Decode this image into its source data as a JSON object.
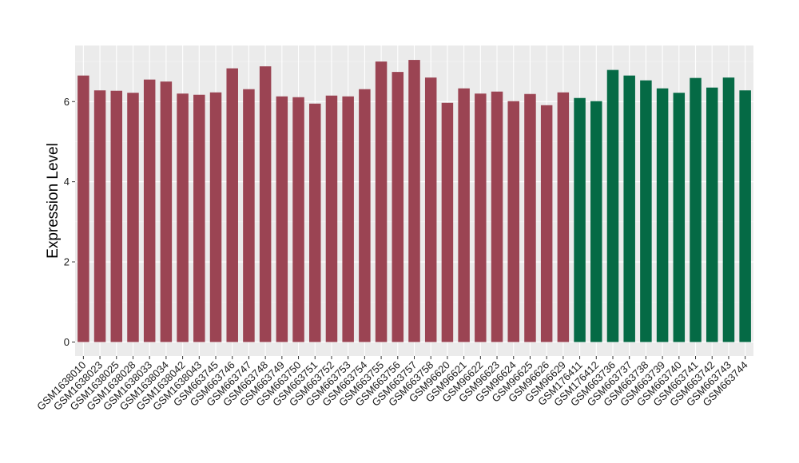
{
  "chart_data": {
    "type": "bar",
    "ylabel": "Expression Level",
    "xlabel": "",
    "ylim": [
      -0.35,
      7.4
    ],
    "yticks": [
      0,
      2,
      4,
      6
    ],
    "grid": true,
    "legend": "none",
    "categories": [
      "GSM1638010",
      "GSM1638023",
      "GSM1638025",
      "GSM1638028",
      "GSM1638033",
      "GSM1638034",
      "GSM1638042",
      "GSM1638043",
      "GSM663745",
      "GSM663746",
      "GSM663747",
      "GSM663748",
      "GSM663749",
      "GSM663750",
      "GSM663751",
      "GSM663752",
      "GSM663753",
      "GSM663754",
      "GSM663755",
      "GSM663756",
      "GSM663757",
      "GSM663758",
      "GSM96620",
      "GSM96621",
      "GSM96622",
      "GSM96623",
      "GSM96624",
      "GSM96625",
      "GSM96626",
      "GSM96629",
      "GSM176411",
      "GSM176412",
      "GSM663736",
      "GSM663737",
      "GSM663738",
      "GSM663739",
      "GSM663740",
      "GSM663741",
      "GSM663742",
      "GSM663743",
      "GSM663744"
    ],
    "values": [
      6.65,
      6.28,
      6.27,
      6.22,
      6.55,
      6.5,
      6.2,
      6.17,
      6.23,
      6.83,
      6.31,
      6.88,
      6.13,
      6.11,
      5.95,
      6.15,
      6.13,
      6.31,
      7.0,
      6.74,
      7.04,
      6.6,
      5.97,
      6.33,
      6.2,
      6.25,
      6.01,
      6.19,
      5.91,
      6.23,
      6.09,
      6.01,
      6.79,
      6.65,
      6.53,
      6.33,
      6.22,
      6.59,
      6.35,
      6.6,
      6.28
    ],
    "groups": [
      0,
      0,
      0,
      0,
      0,
      0,
      0,
      0,
      0,
      0,
      0,
      0,
      0,
      0,
      0,
      0,
      0,
      0,
      0,
      0,
      0,
      0,
      0,
      0,
      0,
      0,
      0,
      0,
      0,
      0,
      1,
      1,
      1,
      1,
      1,
      1,
      1,
      1,
      1,
      1,
      1
    ],
    "group_colors": [
      "#9b4453",
      "#056a45"
    ]
  },
  "style": {
    "panel_background": "#ebebeb",
    "grid_major": "#ffffff",
    "grid_minor": "#f5f5f5"
  }
}
